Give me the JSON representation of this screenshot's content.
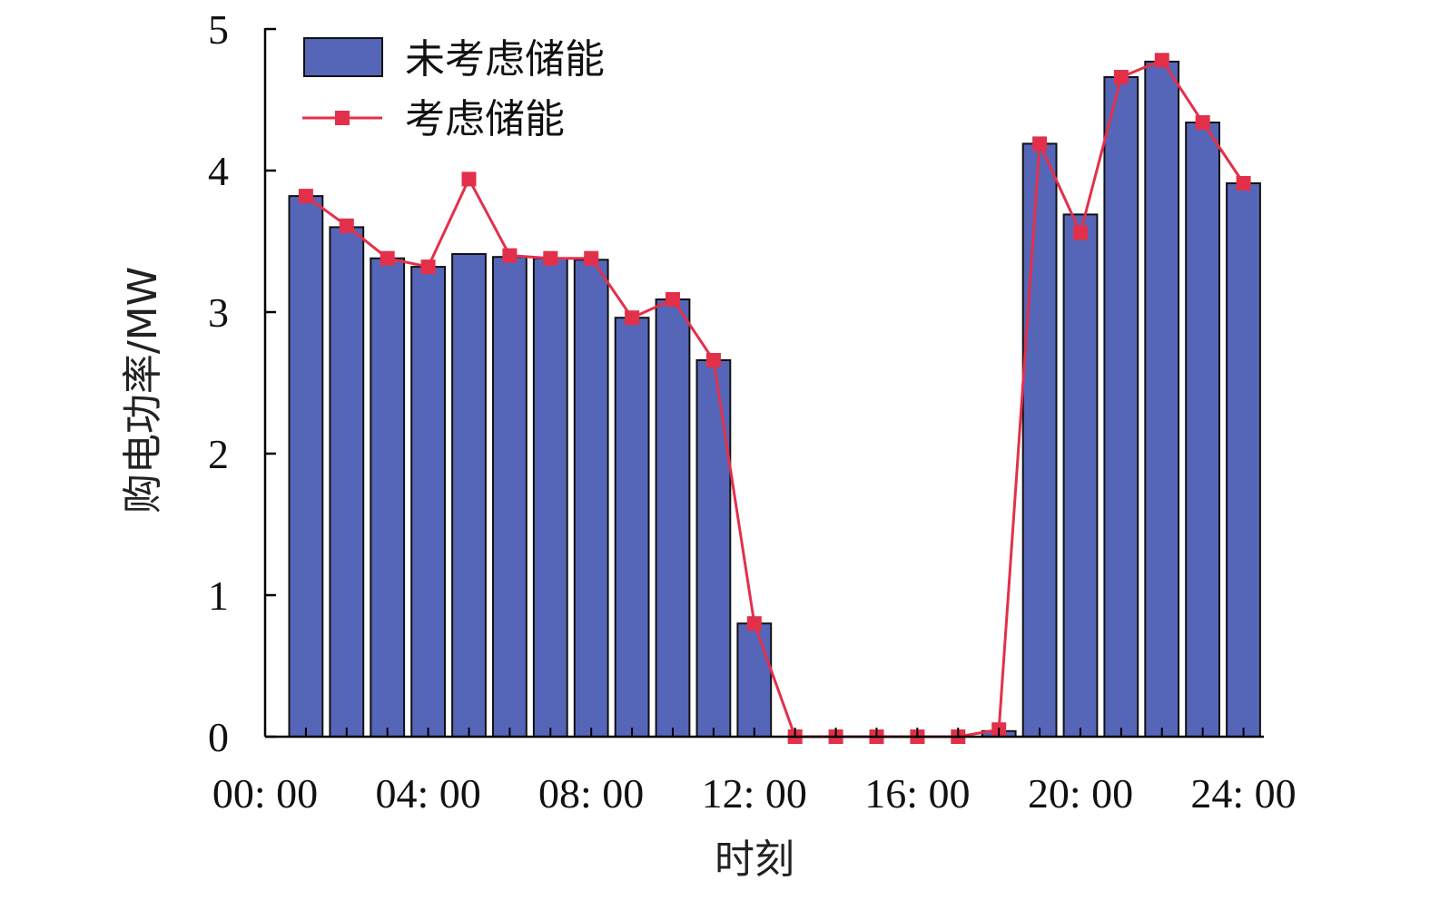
{
  "chart_data": {
    "type": "bar",
    "title": "",
    "xlabel": "时刻",
    "ylabel": "购电功率/MW",
    "ylim": [
      0,
      5
    ],
    "yticks": [
      "0",
      "1",
      "2",
      "3",
      "4",
      "5"
    ],
    "xticks": [
      "00: 00",
      "04: 00",
      "08: 00",
      "12: 00",
      "16: 00",
      "20: 00",
      "24: 00"
    ],
    "x_hours": [
      1,
      2,
      3,
      4,
      5,
      6,
      7,
      8,
      9,
      10,
      11,
      12,
      13,
      14,
      15,
      16,
      17,
      18,
      19,
      20,
      21,
      22,
      23,
      24
    ],
    "series": [
      {
        "name": "未考虑储能",
        "kind": "bar",
        "color": "#5566b8",
        "values": [
          3.82,
          3.6,
          3.38,
          3.32,
          3.41,
          3.39,
          3.38,
          3.37,
          2.96,
          3.09,
          2.66,
          0.8,
          0,
          0,
          0,
          0,
          0,
          0.04,
          4.19,
          3.69,
          4.66,
          4.77,
          4.34,
          3.91
        ]
      },
      {
        "name": "考虑储能",
        "kind": "line",
        "color": "#e3304a",
        "values": [
          3.82,
          3.61,
          3.38,
          3.32,
          3.94,
          3.4,
          3.38,
          3.38,
          2.96,
          3.09,
          2.66,
          0.8,
          0,
          0,
          0,
          0,
          0,
          0.05,
          4.19,
          3.56,
          4.66,
          4.78,
          4.34,
          3.91
        ]
      }
    ],
    "legend_position": "top-left",
    "grid": false
  }
}
